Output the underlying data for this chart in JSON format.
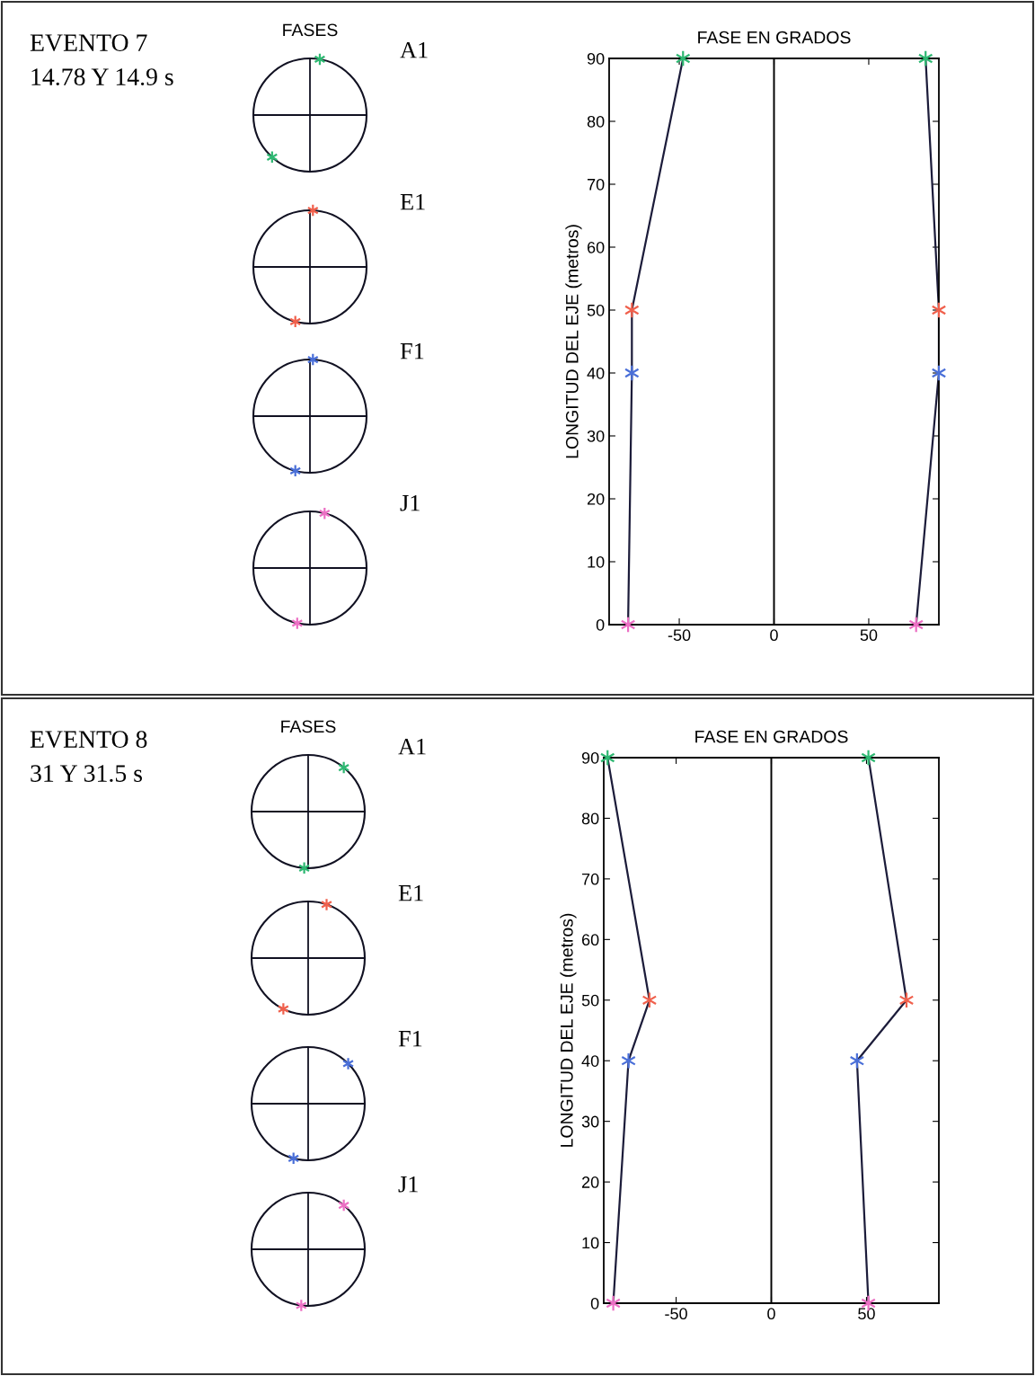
{
  "chart_data": [
    {
      "type": "other",
      "title": "FASES",
      "annotations": [
        "EVENTO 7",
        "14.78 Y 14.9 s"
      ],
      "categories": [
        "A1",
        "E1",
        "F1",
        "J1"
      ]
    },
    {
      "type": "line",
      "title": "FASE EN GRADOS",
      "ylabel": "LONGITUD DEL EJE (metros)",
      "marker": "cross",
      "line_style": "solid",
      "grid": false,
      "xlim": [
        -87,
        87
      ],
      "xticks": [
        -50,
        0,
        50
      ],
      "ylim": [
        0,
        90
      ],
      "yticks": [
        0,
        10,
        20,
        30,
        40,
        50,
        60,
        70,
        80,
        90
      ],
      "ref_lines": [
        {
          "axis": "x",
          "value": 0,
          "color": "#000000"
        }
      ],
      "series": [
        {
          "color": "#1c1c3a",
          "x": [
            -48,
            -75,
            -75,
            -77
          ],
          "values": [
            90,
            50,
            40,
            0
          ],
          "colors": [
            "#2eb872",
            "#f0604c",
            "#4a6fd8",
            "#ec6fc4"
          ]
        },
        {
          "color": "#1c1c3a",
          "x": [
            80,
            87,
            87,
            75
          ],
          "values": [
            90,
            50,
            40,
            0
          ],
          "colors": [
            "#2eb872",
            "#f0604c",
            "#4a6fd8",
            "#ec6fc4"
          ]
        }
      ]
    },
    {
      "type": "other",
      "title": "FASES",
      "annotations": [
        "EVENTO 8",
        "31 Y 31.5 s"
      ],
      "categories": [
        "A1",
        "E1",
        "F1",
        "J1"
      ]
    },
    {
      "type": "line",
      "title": "FASE EN GRADOS",
      "ylabel": "LONGITUD DEL EJE (metros)",
      "marker": "cross",
      "line_style": "solid",
      "grid": false,
      "xlim": [
        -88,
        88
      ],
      "xticks": [
        -50,
        0,
        50
      ],
      "ylim": [
        0,
        90
      ],
      "yticks": [
        0,
        10,
        20,
        30,
        40,
        50,
        60,
        70,
        80,
        90
      ],
      "ref_lines": [
        {
          "axis": "x",
          "value": 0,
          "color": "#000000"
        }
      ],
      "series": [
        {
          "color": "#1c1c3a",
          "x": [
            -86,
            -64,
            -75,
            -83
          ],
          "values": [
            90,
            50,
            40,
            0
          ],
          "colors": [
            "#2eb872",
            "#f0604c",
            "#4a6fd8",
            "#ec6fc4"
          ]
        },
        {
          "color": "#1c1c3a",
          "x": [
            51,
            71,
            45,
            51
          ],
          "values": [
            90,
            50,
            40,
            0
          ],
          "colors": [
            "#2eb872",
            "#f0604c",
            "#4a6fd8",
            "#ec6fc4"
          ]
        }
      ]
    }
  ]
}
